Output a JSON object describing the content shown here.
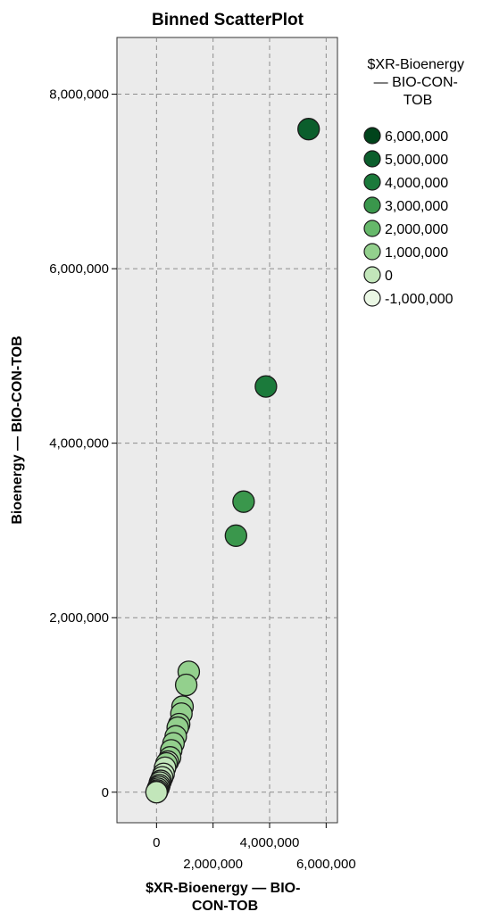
{
  "chart_data": {
    "type": "scatter",
    "title": "Binned ScatterPlot",
    "xlabel_lines": [
      "$XR-Bioenergy — BIO-",
      "CON-TOB"
    ],
    "ylabel": "Bioenergy — BIO-CON-TOB",
    "x_ticks": [
      "0",
      "2,000,000",
      "4,000,000",
      "6,000,000"
    ],
    "x_tick_values": [
      0,
      2000000,
      4000000,
      6000000
    ],
    "y_ticks": [
      "0",
      "2,000,000",
      "4,000,000",
      "6,000,000",
      "8,000,000"
    ],
    "y_tick_values": [
      0,
      2000000,
      4000000,
      6000000,
      8000000
    ],
    "xlim": [
      -1400000,
      6400000
    ],
    "ylim": [
      -350000,
      8650000
    ],
    "grid": true,
    "legend_title_lines": [
      "$XR-Bioenergy",
      "— BIO-CON-",
      "TOB"
    ],
    "legend_position": "right",
    "legend": [
      {
        "label": "6,000,000",
        "color": "#00441b"
      },
      {
        "label": "5,000,000",
        "color": "#0b5e2c"
      },
      {
        "label": "4,000,000",
        "color": "#1b7a3b"
      },
      {
        "label": "3,000,000",
        "color": "#3a974c"
      },
      {
        "label": "2,000,000",
        "color": "#66b86a"
      },
      {
        "label": "1,000,000",
        "color": "#93d08d"
      },
      {
        "label": "0",
        "color": "#c2e6ba"
      },
      {
        "label": "-1,000,000",
        "color": "#eaf7e4"
      }
    ],
    "points": [
      {
        "x": 5380000,
        "y": 7600000,
        "color": "#0b5e2c"
      },
      {
        "x": 3870000,
        "y": 4650000,
        "color": "#1b7a3b"
      },
      {
        "x": 3080000,
        "y": 3330000,
        "color": "#3a974c"
      },
      {
        "x": 2810000,
        "y": 2940000,
        "color": "#3a974c"
      },
      {
        "x": 1140000,
        "y": 1380000,
        "color": "#93d08d"
      },
      {
        "x": 1050000,
        "y": 1230000,
        "color": "#93d08d"
      },
      {
        "x": 920000,
        "y": 980000,
        "color": "#93d08d"
      },
      {
        "x": 880000,
        "y": 900000,
        "color": "#93d08d"
      },
      {
        "x": 800000,
        "y": 780000,
        "color": "#93d08d"
      },
      {
        "x": 750000,
        "y": 740000,
        "color": "#93d08d"
      },
      {
        "x": 680000,
        "y": 640000,
        "color": "#93d08d"
      },
      {
        "x": 600000,
        "y": 560000,
        "color": "#93d08d"
      },
      {
        "x": 520000,
        "y": 480000,
        "color": "#93d08d"
      },
      {
        "x": 480000,
        "y": 400000,
        "color": "#93d08d"
      },
      {
        "x": 400000,
        "y": 350000,
        "color": "#c2e6ba"
      },
      {
        "x": 350000,
        "y": 330000,
        "color": "#93d08d"
      },
      {
        "x": 300000,
        "y": 280000,
        "color": "#c2e6ba"
      },
      {
        "x": 250000,
        "y": 210000,
        "color": "#c2e6ba"
      },
      {
        "x": 200000,
        "y": 170000,
        "color": "#c2e6ba"
      },
      {
        "x": 150000,
        "y": 130000,
        "color": "#c2e6ba"
      },
      {
        "x": 120000,
        "y": 110000,
        "color": "#c2e6ba"
      },
      {
        "x": 100000,
        "y": 80000,
        "color": "#c2e6ba"
      },
      {
        "x": 80000,
        "y": 60000,
        "color": "#c2e6ba"
      },
      {
        "x": 50000,
        "y": 40000,
        "color": "#c2e6ba"
      },
      {
        "x": 30000,
        "y": 20000,
        "color": "#c2e6ba"
      },
      {
        "x": 10000,
        "y": 5000,
        "color": "#c2e6ba"
      },
      {
        "x": 0,
        "y": 0,
        "color": "#c2e6ba"
      }
    ]
  }
}
